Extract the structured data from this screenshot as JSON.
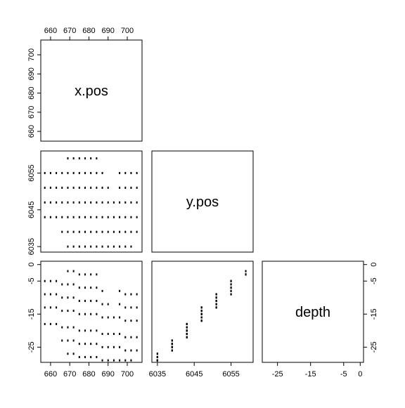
{
  "chart_data": {
    "type": "pairs",
    "color": "#000000",
    "variables": [
      {
        "name": "x.pos",
        "lim": [
          654.9,
          707.7
        ],
        "ticks": [
          660,
          670,
          680,
          690,
          700
        ],
        "values": [
          657,
          657,
          657,
          657,
          660,
          660,
          660,
          660,
          663,
          663,
          663,
          663,
          666,
          666,
          666,
          666,
          666,
          669,
          669,
          669,
          669,
          669,
          669,
          669,
          672,
          672,
          672,
          672,
          672,
          672,
          672,
          675,
          675,
          675,
          675,
          675,
          675,
          675,
          678,
          678,
          678,
          678,
          678,
          678,
          678,
          681,
          681,
          681,
          681,
          681,
          681,
          681,
          684,
          684,
          684,
          684,
          684,
          684,
          684,
          687,
          687,
          687,
          687,
          687,
          687,
          690,
          690,
          690,
          690,
          690,
          693,
          693,
          693,
          693,
          696,
          696,
          696,
          696,
          696,
          696,
          699,
          699,
          699,
          699,
          699,
          699,
          702,
          702,
          702,
          702,
          702,
          702,
          705,
          705,
          705,
          705,
          705
        ]
      },
      {
        "name": "y.pos",
        "lim": [
          6033.5,
          6061
        ],
        "ticks": [
          6035,
          6045,
          6055
        ],
        "values": [
          6043,
          6047,
          6051,
          6055,
          6043,
          6047,
          6051,
          6055,
          6043,
          6047,
          6051,
          6055,
          6039,
          6043,
          6047,
          6051,
          6055,
          6035,
          6039,
          6043,
          6047,
          6051,
          6055,
          6059,
          6035,
          6039,
          6043,
          6047,
          6051,
          6055,
          6059,
          6035,
          6039,
          6043,
          6047,
          6051,
          6055,
          6059,
          6035,
          6039,
          6043,
          6047,
          6051,
          6055,
          6059,
          6035,
          6039,
          6043,
          6047,
          6051,
          6055,
          6059,
          6035,
          6039,
          6043,
          6047,
          6051,
          6055,
          6059,
          6035,
          6039,
          6043,
          6047,
          6051,
          6055,
          6035,
          6039,
          6043,
          6047,
          6051,
          6035,
          6039,
          6043,
          6047,
          6035,
          6039,
          6043,
          6047,
          6051,
          6055,
          6035,
          6039,
          6043,
          6047,
          6051,
          6055,
          6035,
          6039,
          6043,
          6047,
          6051,
          6055,
          6039,
          6043,
          6047,
          6051,
          6055
        ]
      },
      {
        "name": "depth",
        "lim": [
          -29.6,
          1
        ],
        "ticks": [
          -25,
          -15,
          -5,
          0
        ],
        "values": [
          -18,
          -13,
          -9,
          -5,
          -18,
          -13,
          -9,
          -5,
          -18,
          -13,
          -9,
          -5,
          -23,
          -19,
          -14,
          -10,
          -6,
          -27,
          -23,
          -19,
          -14,
          -10,
          -6,
          -2,
          -27,
          -23,
          -19,
          -14,
          -10,
          -6,
          -2,
          -28,
          -24,
          -20,
          -15,
          -11,
          -7,
          -3,
          -28,
          -24,
          -20,
          -15,
          -11,
          -7,
          -3,
          -28,
          -24,
          -20,
          -15,
          -11,
          -7,
          -3,
          -28,
          -24,
          -20,
          -15,
          -11,
          -7,
          -3,
          -29,
          -25,
          -21,
          -16,
          -12,
          -8,
          -29,
          -25,
          -21,
          -16,
          -12,
          -29,
          -25,
          -21,
          -16,
          -29,
          -25,
          -21,
          -16,
          -12,
          -8,
          -29,
          -26,
          -22,
          -17,
          -13,
          -9,
          -29,
          -26,
          -22,
          -17,
          -13,
          -9,
          -26,
          -22,
          -17,
          -13,
          -9
        ]
      }
    ]
  }
}
